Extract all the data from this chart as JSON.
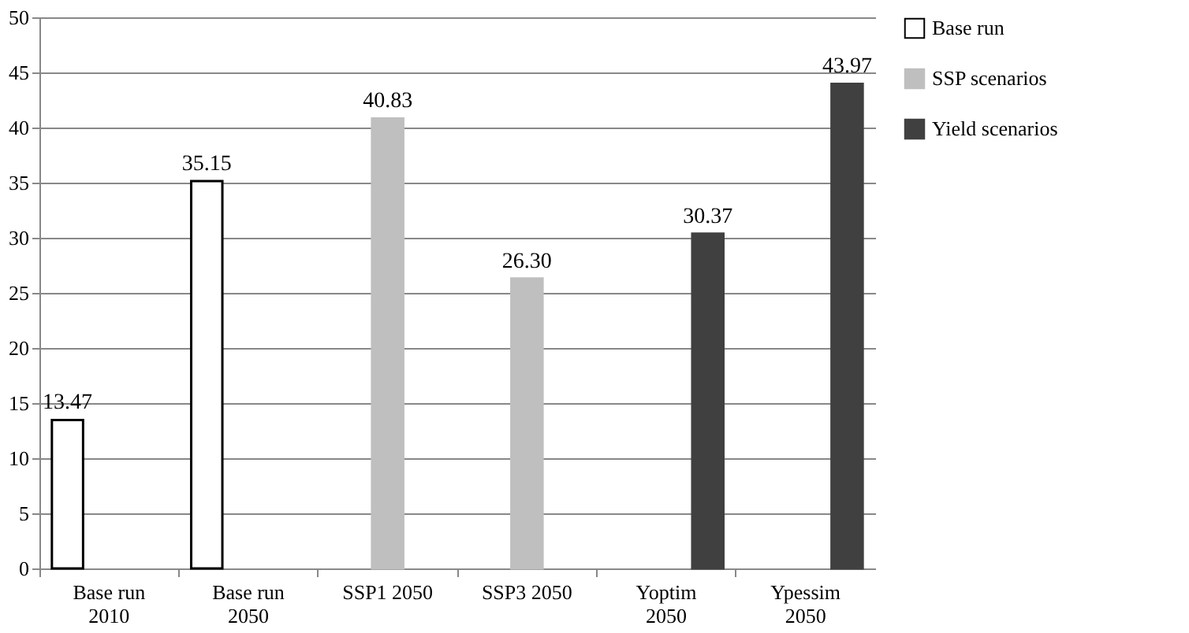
{
  "chart_data": {
    "type": "bar",
    "categories": [
      "Base run 2010",
      "Base run 2050",
      "SSP1 2050",
      "SSP3 2050",
      "Yoptim 2050",
      "Ypessim 2050"
    ],
    "series": [
      {
        "name": "Base run",
        "color": "#ffffff",
        "values": [
          13.47,
          35.15,
          null,
          null,
          null,
          null
        ],
        "value_labels": [
          "13.47",
          "35.15",
          null,
          null,
          null,
          null
        ]
      },
      {
        "name": "SSP scenarios",
        "color": "#bfbfbf",
        "values": [
          null,
          null,
          40.83,
          26.3,
          null,
          null
        ],
        "value_labels": [
          null,
          null,
          "40.83",
          "26.30",
          null,
          null
        ]
      },
      {
        "name": "Yield scenarios",
        "color": "#404040",
        "values": [
          null,
          null,
          null,
          null,
          30.37,
          43.97
        ],
        "value_labels": [
          null,
          null,
          null,
          null,
          "30.37",
          "43.97"
        ]
      }
    ],
    "ylim": [
      0,
      50
    ],
    "yticks": [
      0,
      5,
      10,
      15,
      20,
      25,
      30,
      35,
      40,
      45,
      50
    ],
    "grid": "y",
    "legend": "right"
  }
}
